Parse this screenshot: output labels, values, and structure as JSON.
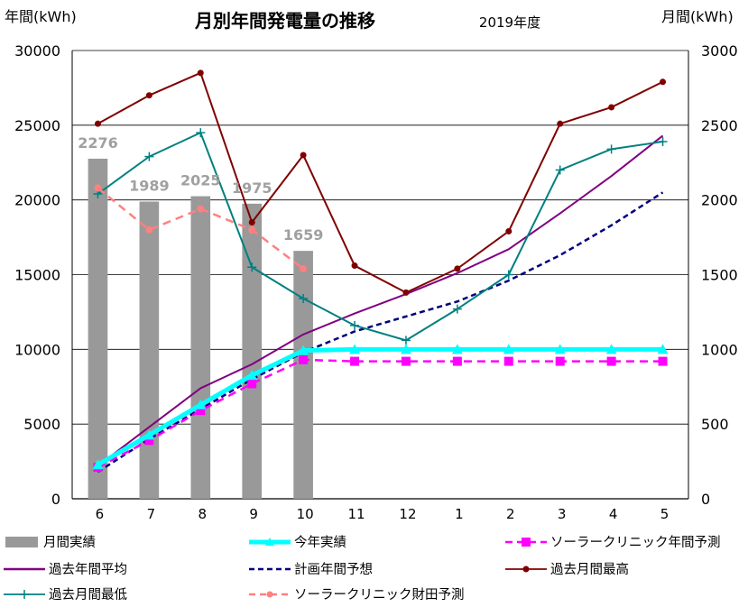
{
  "chart_data": {
    "type": "bar",
    "title": "月別年間発電量の推移",
    "subtitle": "2019年度",
    "ylabel_left": "年間(kWh)",
    "ylabel_right": "月間(kWh)",
    "categories": [
      "6",
      "7",
      "8",
      "9",
      "10",
      "11",
      "12",
      "1",
      "2",
      "3",
      "4",
      "5"
    ],
    "ylim_left": [
      0,
      30000
    ],
    "ylim_right": [
      0,
      3000
    ],
    "yticks_left": [
      "0",
      "5000",
      "10000",
      "15000",
      "20000",
      "25000",
      "30000"
    ],
    "yticks_right": [
      "0",
      "500",
      "1000",
      "1500",
      "2000",
      "2500",
      "3000"
    ],
    "grid": true,
    "legend_position": "bottom",
    "bars": {
      "name": "月間実績",
      "axis": "right",
      "color": "#999999",
      "values": [
        2276,
        1989,
        2025,
        1975,
        1659,
        null,
        null,
        null,
        null,
        null,
        null,
        null
      ],
      "labels": [
        "2276",
        "1989",
        "2025",
        "1975",
        "1659"
      ]
    },
    "series": [
      {
        "name": "今年実績",
        "axis": "left",
        "color": "#00FFFF",
        "style": "thick",
        "marker": "triangle",
        "values": [
          2276,
          4265,
          6290,
          8265,
          9924,
          10000,
          10000,
          10000,
          10000,
          10000,
          10000,
          10000
        ]
      },
      {
        "name": "ソーラークリニック年間予測",
        "axis": "left",
        "color": "#FF00FF",
        "style": "dashed",
        "marker": "square",
        "values": [
          2100,
          3900,
          5900,
          7700,
          9300,
          9200,
          9200,
          9200,
          9200,
          9200,
          9200,
          9200
        ]
      },
      {
        "name": "過去年間平均",
        "axis": "left",
        "color": "#800080",
        "style": "solid",
        "marker": "none",
        "values": [
          2200,
          4800,
          7400,
          9000,
          11000,
          12400,
          13700,
          15100,
          16700,
          19100,
          21600,
          24300
        ]
      },
      {
        "name": "計画年間予想",
        "axis": "left",
        "color": "#00007F",
        "style": "dashed",
        "marker": "none",
        "values": [
          1800,
          4000,
          6000,
          8000,
          9800,
          11200,
          12200,
          13200,
          14600,
          16300,
          18300,
          20500
        ]
      },
      {
        "name": "過去月間最高",
        "axis": "right",
        "color": "#800000",
        "style": "solid",
        "marker": "circle",
        "values": [
          2510,
          2700,
          2850,
          1850,
          2300,
          1560,
          1380,
          1540,
          1790,
          2510,
          2620,
          2790
        ]
      },
      {
        "name": "過去月間最低",
        "axis": "right",
        "color": "#008080",
        "style": "solid",
        "marker": "plus",
        "values": [
          2040,
          2290,
          2450,
          1550,
          1340,
          1160,
          1060,
          1270,
          1500,
          2200,
          2340,
          2390
        ]
      },
      {
        "name": "ソーラークリニック財田予測",
        "axis": "right",
        "color": "#FF8080",
        "style": "dashed",
        "marker": "circle",
        "values": [
          2080,
          1800,
          1940,
          1800,
          1540,
          null,
          null,
          null,
          null,
          null,
          null,
          null
        ]
      }
    ]
  }
}
